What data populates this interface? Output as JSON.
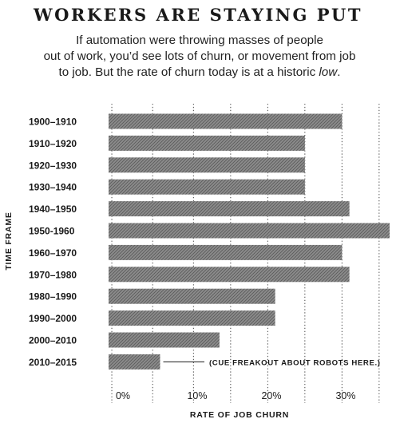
{
  "title": "WORKERS ARE STAYING PUT",
  "subtitle_lines": [
    "If automation were throwing masses of people",
    "out of work, you’d see lots of churn, or movement from job",
    "to job. But the rate of churn today is at a historic "
  ],
  "subtitle_emphasis": "low",
  "subtitle_end": ".",
  "chart_data": {
    "type": "bar",
    "orientation": "horizontal",
    "categories": [
      "1900–1910",
      "1910–1920",
      "1920–1930",
      "1930–1940",
      "1940–1950",
      "1950-1960",
      "1960–1970",
      "1970–1980",
      "1980–1990",
      "1990–2000",
      "2000–2010",
      "2010–2015"
    ],
    "values": [
      29.5,
      24.5,
      24.5,
      24.5,
      30.5,
      37,
      29.5,
      30.5,
      20.5,
      20.5,
      13,
      5
    ],
    "xlim": [
      -2,
      36
    ],
    "xticks": [
      0,
      10,
      20,
      30
    ],
    "xtick_labels": [
      "0%",
      "10%",
      "20%",
      "30%"
    ],
    "xlabel": "RATE OF JOB CHURN",
    "ylabel": "TIME FRAME",
    "grid": "vertical dotted",
    "bar_color": "#8a8a8a",
    "annotation": {
      "text": "(CUE FREAKOUT ABOUT ROBOTS HERE.)",
      "category": "2010–2015"
    }
  }
}
